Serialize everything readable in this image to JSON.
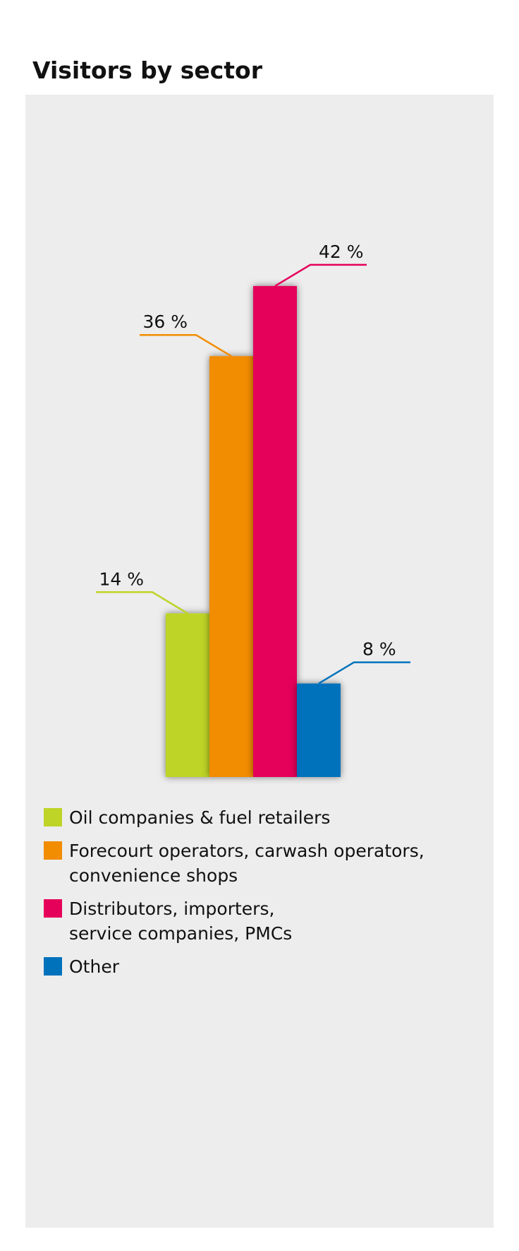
{
  "chart_data": {
    "type": "bar",
    "title": "Visitors by sector",
    "series": [
      {
        "name": "Oil companies & fuel retailers",
        "color": "#bed426",
        "values": [
          14
        ],
        "value_labels": [
          "14 %"
        ]
      },
      {
        "name": "Forecourt operators, carwash operators,\nconvenience shops",
        "color": "#f28c00",
        "values": [
          36
        ],
        "value_labels": [
          "36 %"
        ]
      },
      {
        "name": "Distributors, importers,\nservice companies, PMCs",
        "color": "#e5005a",
        "values": [
          42
        ],
        "value_labels": [
          "42 %"
        ]
      },
      {
        "name": "Other",
        "color": "#0072bc",
        "values": [
          8
        ],
        "value_labels": [
          "8 %"
        ]
      }
    ]
  }
}
